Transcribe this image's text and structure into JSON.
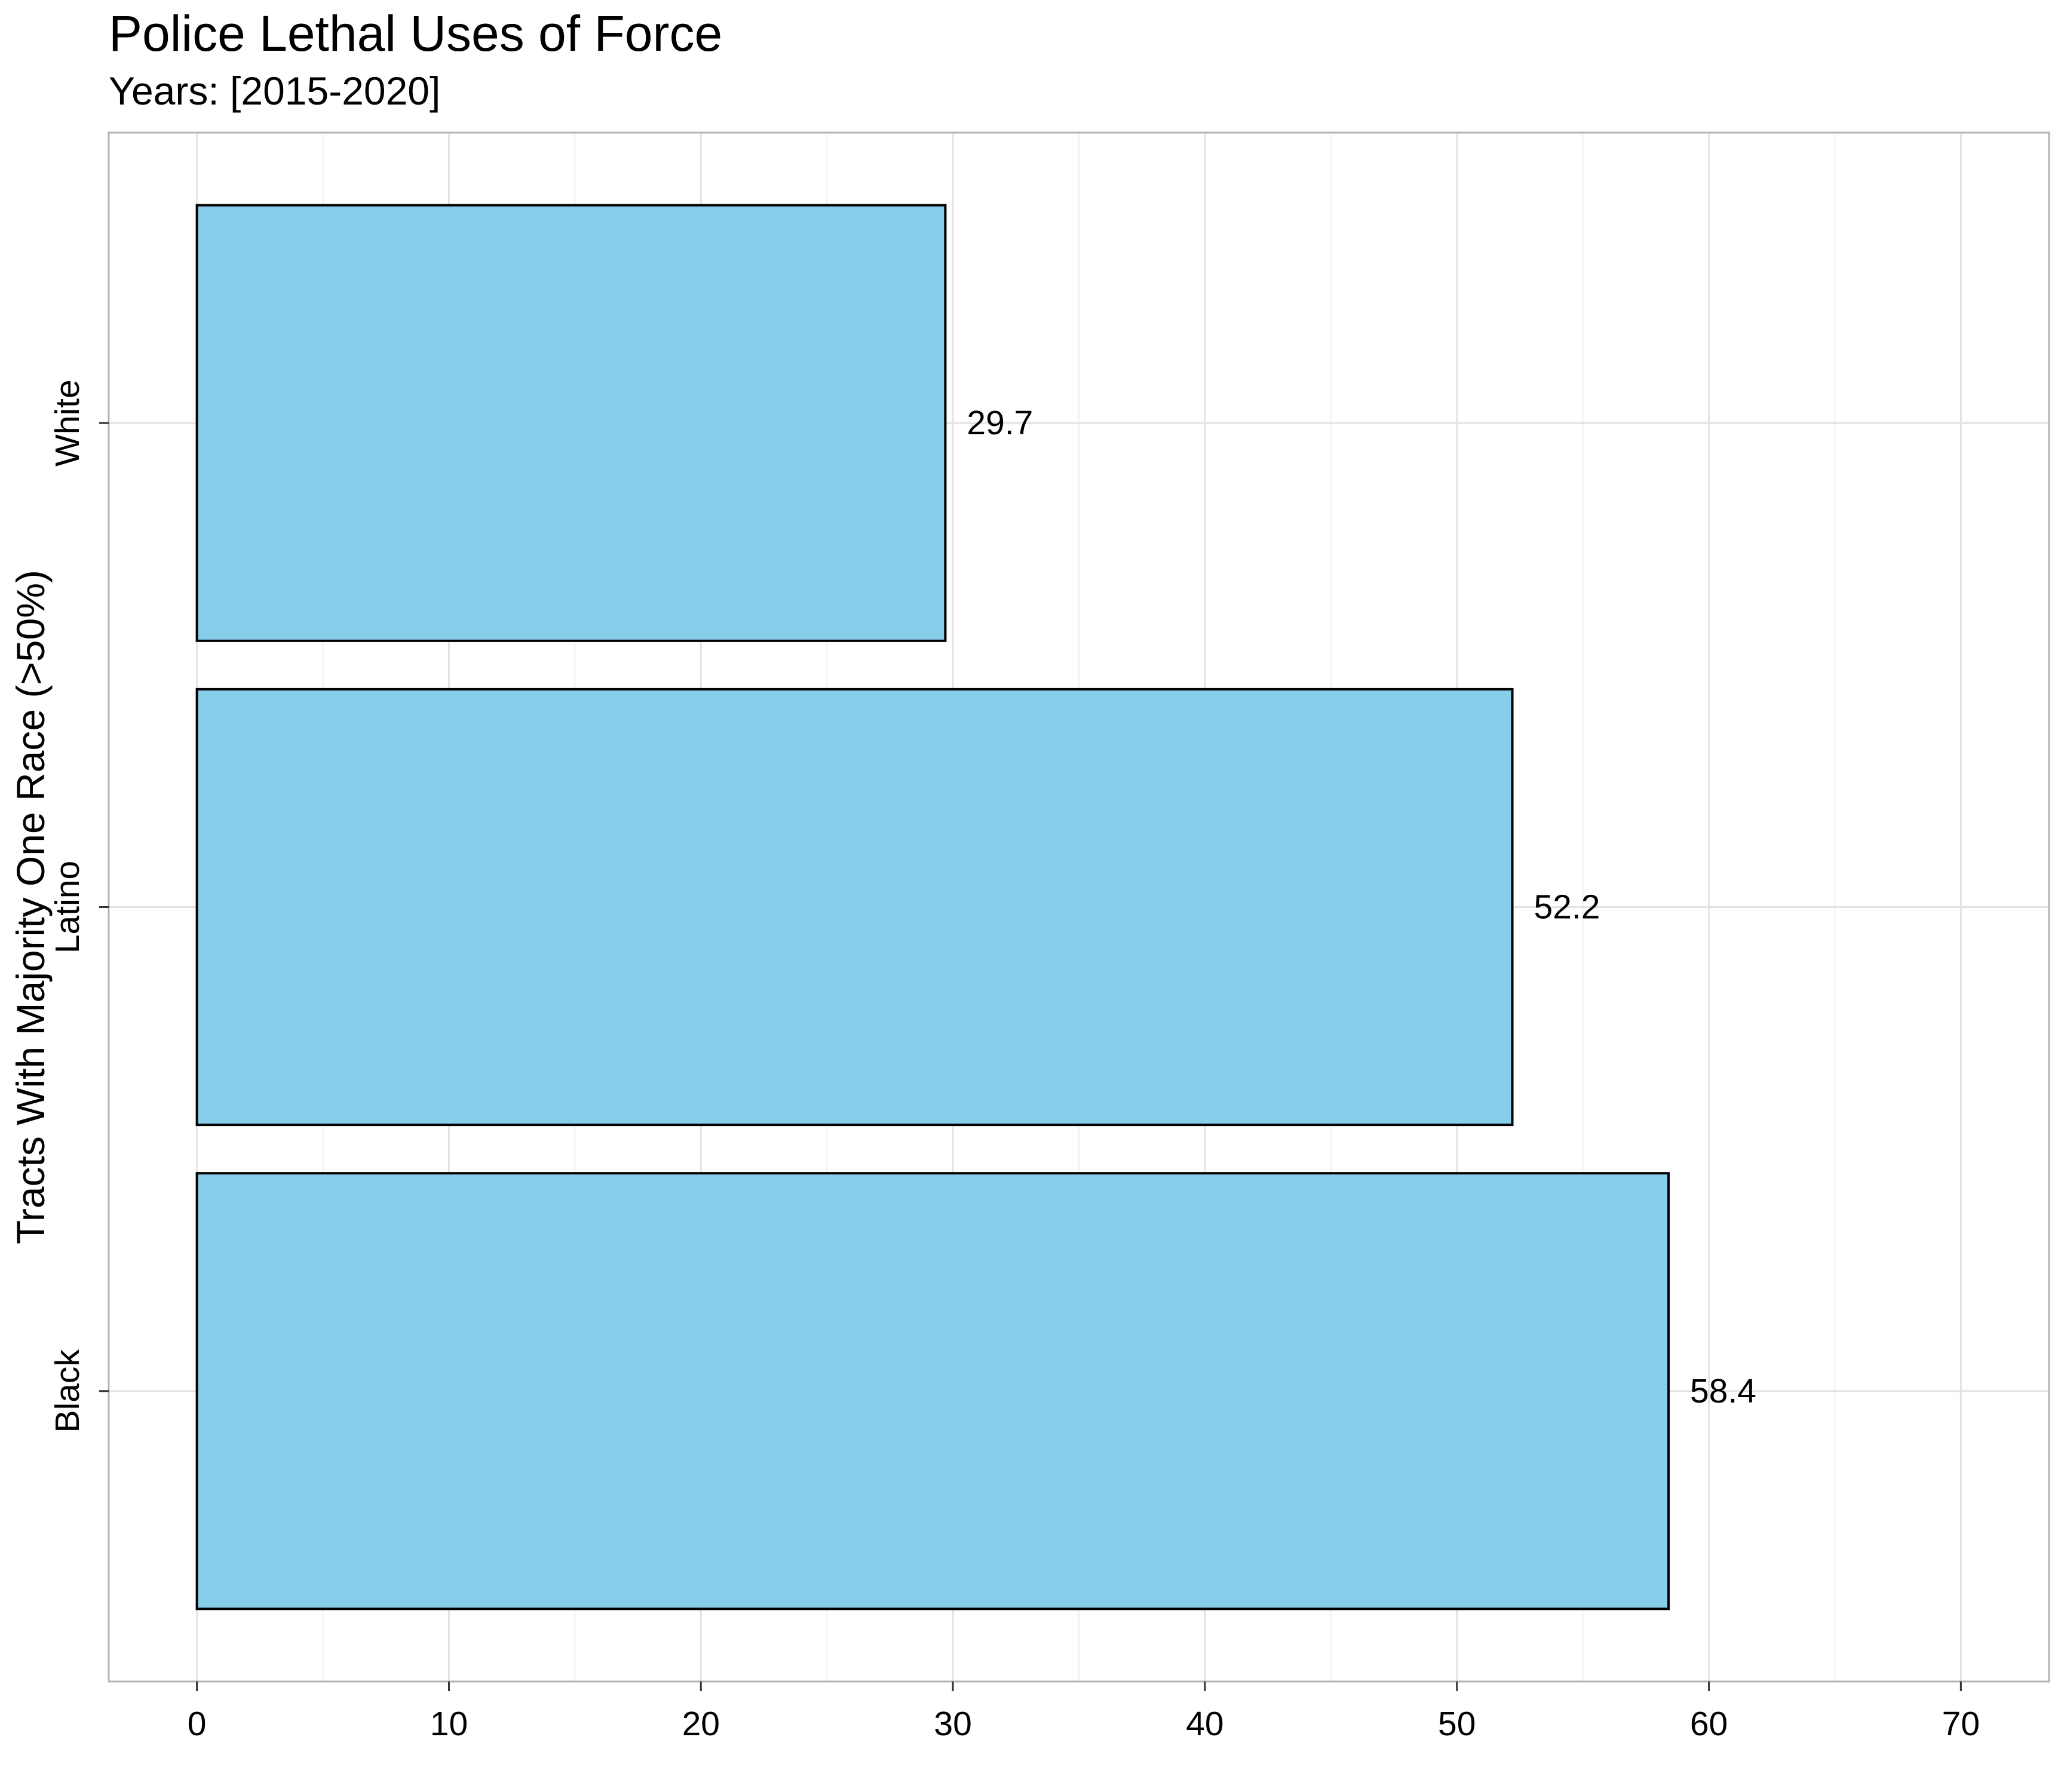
{
  "chart_data": {
    "type": "bar",
    "orientation": "horizontal",
    "title": "Police Lethal Uses of Force",
    "subtitle": "Years: [2015-2020]",
    "xlabel": "",
    "ylabel": "Tracts With Majority One Race (>50%)",
    "categories": [
      "Black",
      "Latino",
      "White"
    ],
    "values": [
      58.4,
      52.2,
      29.7
    ],
    "value_labels": [
      "58.4",
      "52.2",
      "29.7"
    ],
    "xlim": [
      -3.5,
      73.5
    ],
    "x_ticks": [
      0,
      10,
      20,
      30,
      40,
      50,
      60,
      70
    ],
    "x_tick_labels": [
      "0",
      "10",
      "20",
      "30",
      "40",
      "50",
      "60",
      "70"
    ],
    "grid": true,
    "legend": "none",
    "bar_color": "#87CEEB",
    "bar_edge_color": "#000000"
  }
}
